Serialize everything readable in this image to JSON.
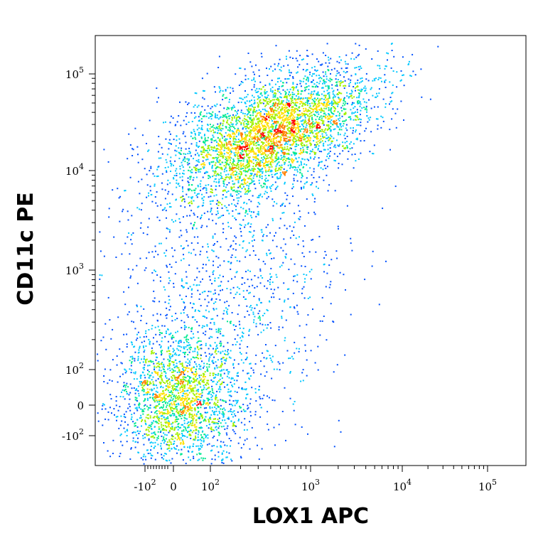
{
  "chart_data": {
    "type": "scatter",
    "subtype": "flow-cytometry density plot",
    "xlabel": "LOX1 APC",
    "ylabel": "CD11c PE",
    "x_scale": "biexponential (logicle)",
    "y_scale": "biexponential (logicle)",
    "xlim": [
      -300,
      200000
    ],
    "ylim": [
      -200,
      200000
    ],
    "x_ticks": [
      {
        "base": "-10",
        "exp": "2",
        "value": -100
      },
      {
        "base": "0",
        "exp": "",
        "value": 0
      },
      {
        "base": "10",
        "exp": "2",
        "value": 100
      },
      {
        "base": "10",
        "exp": "3",
        "value": 1000
      },
      {
        "base": "10",
        "exp": "4",
        "value": 10000
      },
      {
        "base": "10",
        "exp": "5",
        "value": 100000
      }
    ],
    "y_ticks": [
      {
        "base": "-10",
        "exp": "2",
        "value": -100
      },
      {
        "base": "0",
        "exp": "",
        "value": 0
      },
      {
        "base": "10",
        "exp": "2",
        "value": 100
      },
      {
        "base": "10",
        "exp": "3",
        "value": 1000
      },
      {
        "base": "10",
        "exp": "4",
        "value": 10000
      },
      {
        "base": "10",
        "exp": "5",
        "value": 100000
      }
    ],
    "populations": [
      {
        "center_x": 400,
        "center_y": 25000,
        "spread_x_decades": 0.55,
        "spread_y_decades": 0.28,
        "share": 0.55
      },
      {
        "center_x": 15,
        "center_y": 20,
        "spread_x_decades": 0.35,
        "spread_y_decades": 0.35,
        "share": 0.3
      },
      {
        "center_x": 150,
        "center_y": 800,
        "spread_x_decades": 0.6,
        "spread_y_decades": 0.7,
        "share": 0.15
      }
    ],
    "colormap": [
      "#0000c8",
      "#0050ff",
      "#00c8ff",
      "#00e890",
      "#a0f000",
      "#ffe000",
      "#ff8000",
      "#ff0000"
    ],
    "grid": false
  }
}
